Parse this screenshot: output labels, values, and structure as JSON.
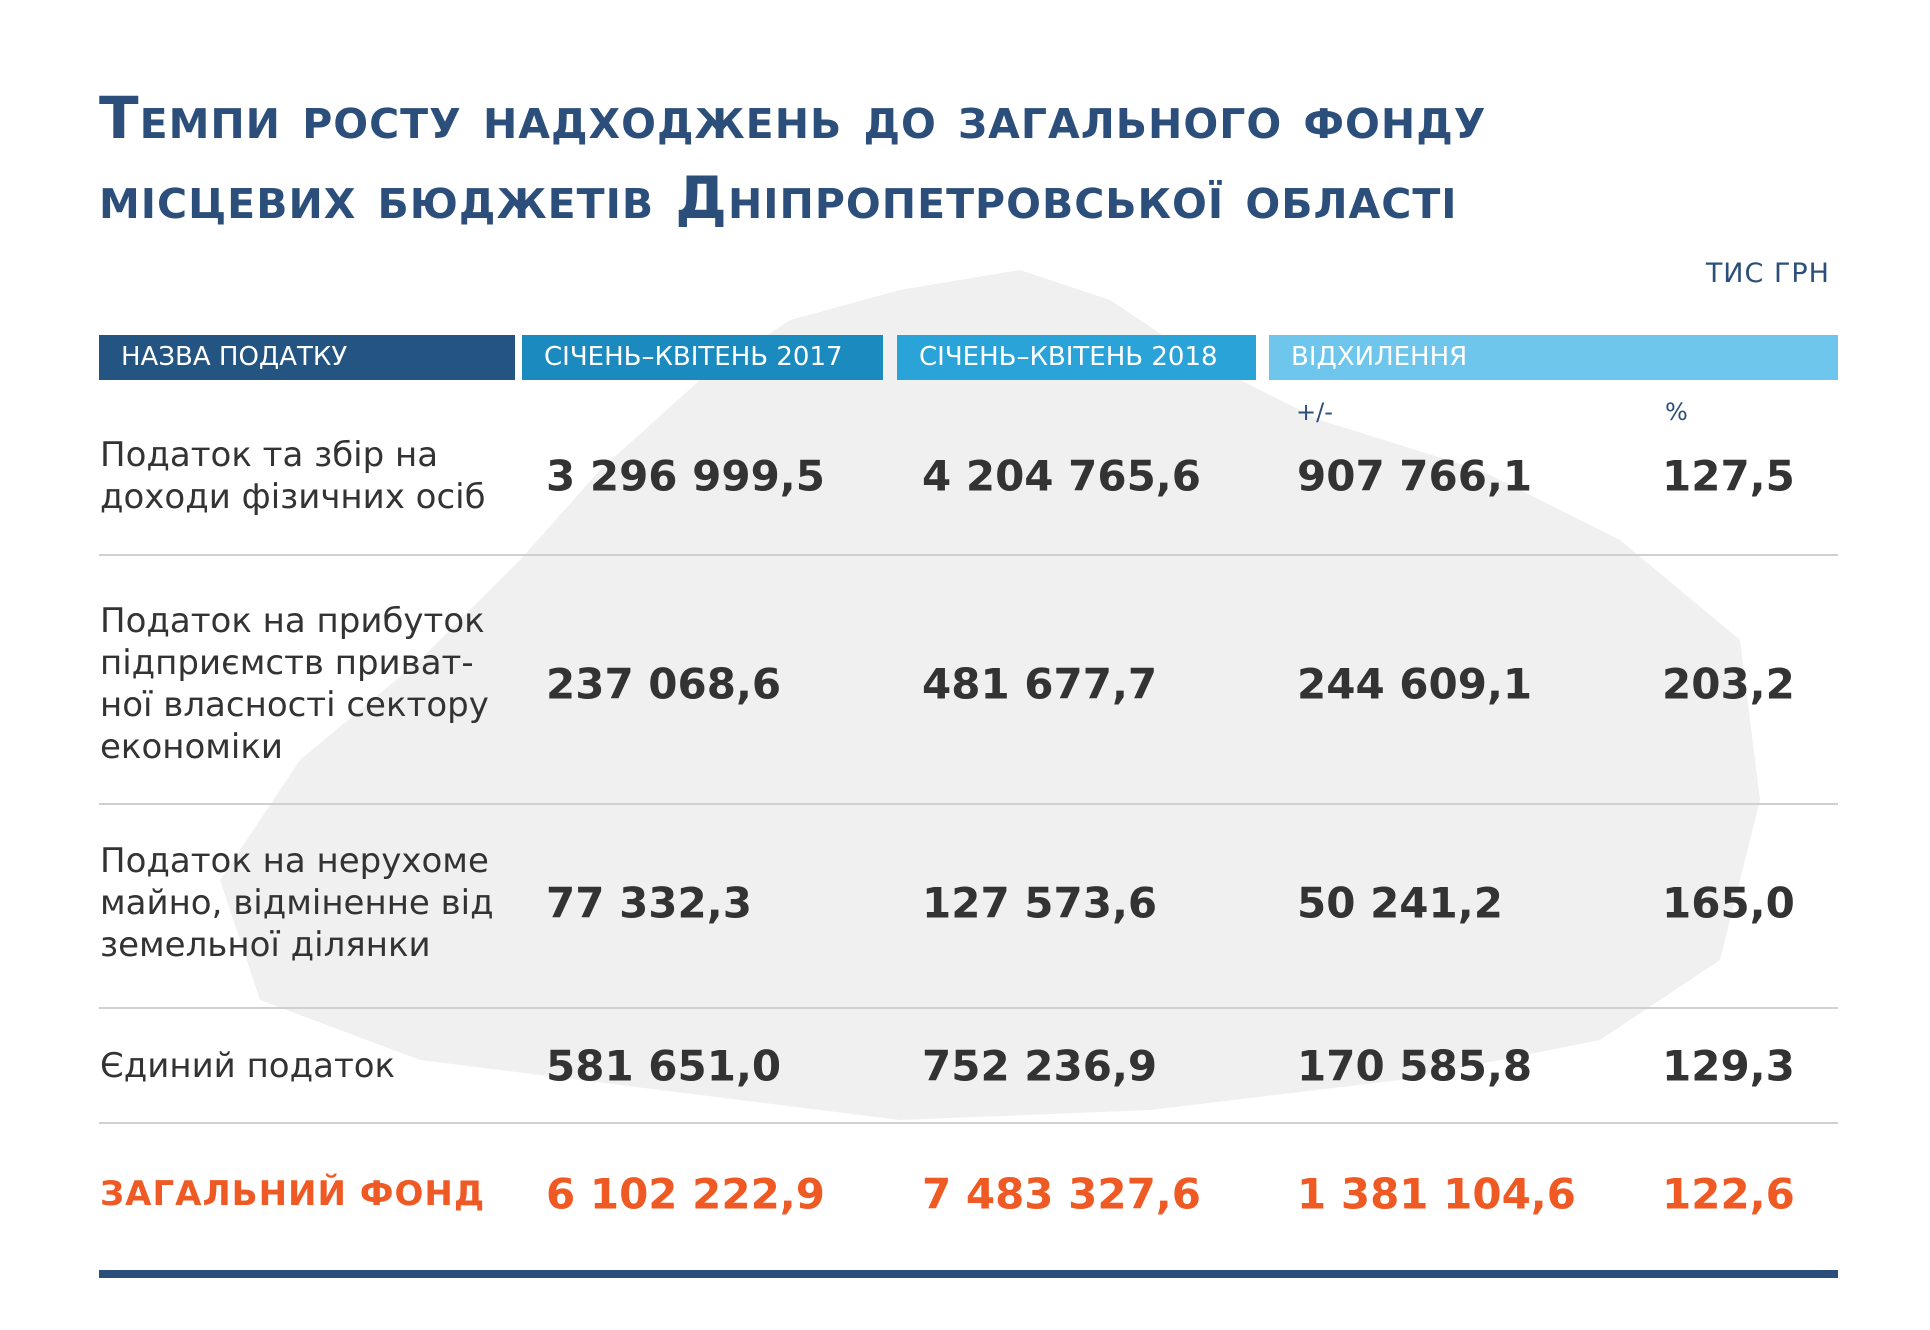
{
  "header": {
    "title": [
      "Темпи росту надходжень до загального фонду",
      "місцевих бюджетів Дніпропетровської області"
    ],
    "unit": "ТИС ГРН"
  },
  "table": {
    "columns": [
      "НАЗВА ПОДАТКУ",
      "СІЧЕНЬ–КВІТЕНЬ 2017",
      "СІЧЕНЬ–КВІТЕНЬ 2018",
      "ВІДХИЛЕННЯ"
    ],
    "subcolumns": [
      "+/-",
      "%"
    ],
    "rows": [
      [
        "Податок та збір на\nдоходи фізичних осіб",
        "3 296 999,5",
        "4 204 765,6",
        "907 766,1",
        "127,5"
      ],
      [
        "Податок на прибуток\nпідприємств приват-\nної власності сектору\nекономіки",
        "237 068,6",
        "481 677,7",
        "244 609,1",
        "203,2"
      ],
      [
        "Податок на нерухоме\nмайно, відміненне від\nземельної ділянки",
        "77 332,3",
        "127 573,6",
        "50 241,2",
        "165,0"
      ],
      [
        "Єдиний податок",
        "581 651,0",
        "752 236,9",
        "170 585,8",
        "129,3"
      ]
    ],
    "total": [
      "ЗАГАЛЬНИЙ ФОНД",
      "6 102 222,9",
      "7 483 327,6",
      "1 381 104,6",
      "122,6"
    ]
  }
}
